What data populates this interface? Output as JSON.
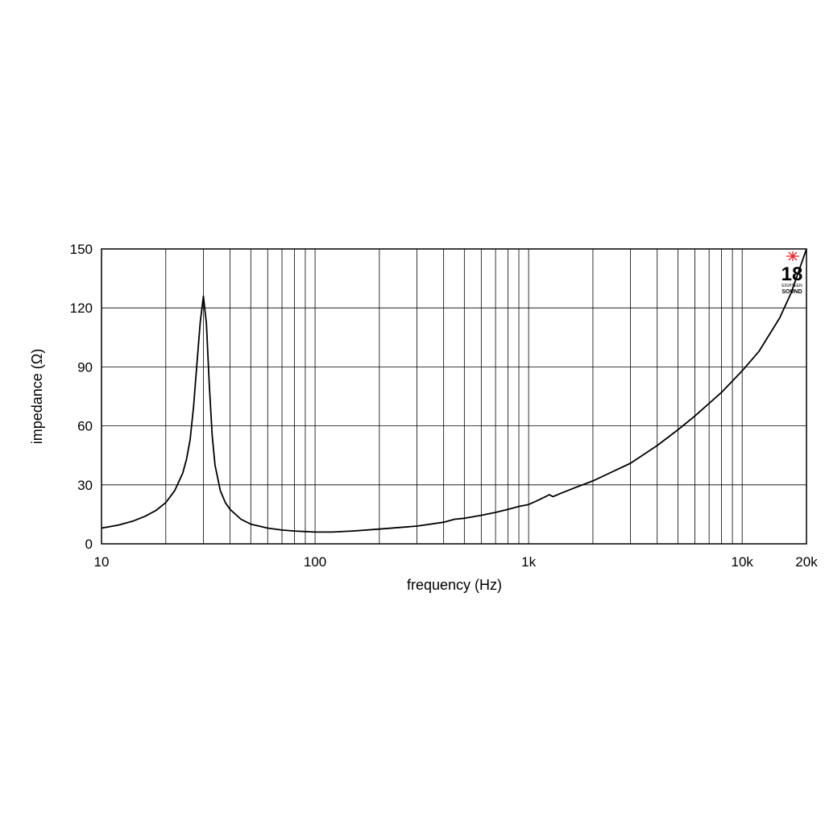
{
  "chart_data": {
    "type": "line",
    "xlabel": "frequency (Hz)",
    "ylabel": "impedance (Ω)",
    "x_scale": "log",
    "xlim": [
      10,
      20000
    ],
    "ylim": [
      0,
      150
    ],
    "grid": true,
    "x_ticks": [
      {
        "value": 10,
        "label": "10"
      },
      {
        "value": 100,
        "label": "100"
      },
      {
        "value": 1000,
        "label": "1k"
      },
      {
        "value": 10000,
        "label": "10k"
      },
      {
        "value": 20000,
        "label": "20k"
      }
    ],
    "y_ticks": [
      {
        "value": 0,
        "label": "0"
      },
      {
        "value": 30,
        "label": "30"
      },
      {
        "value": 60,
        "label": "60"
      },
      {
        "value": 90,
        "label": "90"
      },
      {
        "value": 120,
        "label": "120"
      },
      {
        "value": 150,
        "label": "150"
      }
    ],
    "series": [
      {
        "color": "#000000",
        "x": [
          10,
          12,
          14,
          16,
          18,
          20,
          22,
          24,
          25,
          26,
          27,
          28,
          29,
          30,
          31,
          32,
          33,
          34,
          36,
          38,
          40,
          45,
          50,
          60,
          70,
          80,
          100,
          120,
          150,
          200,
          300,
          400,
          450,
          500,
          600,
          700,
          800,
          900,
          1000,
          1100,
          1200,
          1250,
          1300,
          1400,
          1600,
          2000,
          3000,
          4000,
          5000,
          6000,
          8000,
          10000,
          12000,
          15000,
          17000,
          20000
        ],
        "y": [
          8,
          9.5,
          11.5,
          14,
          17,
          21,
          27,
          36,
          43,
          53,
          70,
          92,
          113,
          126,
          112,
          80,
          55,
          40,
          27,
          21,
          17.5,
          12.5,
          10,
          8,
          7,
          6.5,
          6,
          6,
          6.5,
          7.5,
          9,
          11,
          12.5,
          13,
          14.5,
          16,
          17.5,
          19,
          20,
          22,
          24,
          25,
          24,
          25.5,
          28,
          32,
          41,
          50,
          58,
          65,
          77,
          88,
          98,
          115,
          128,
          150
        ]
      }
    ]
  },
  "logo": {
    "mark": "18",
    "line1": "EIGHTEEN",
    "line2": "SOUND",
    "accent": "#e8232a"
  }
}
